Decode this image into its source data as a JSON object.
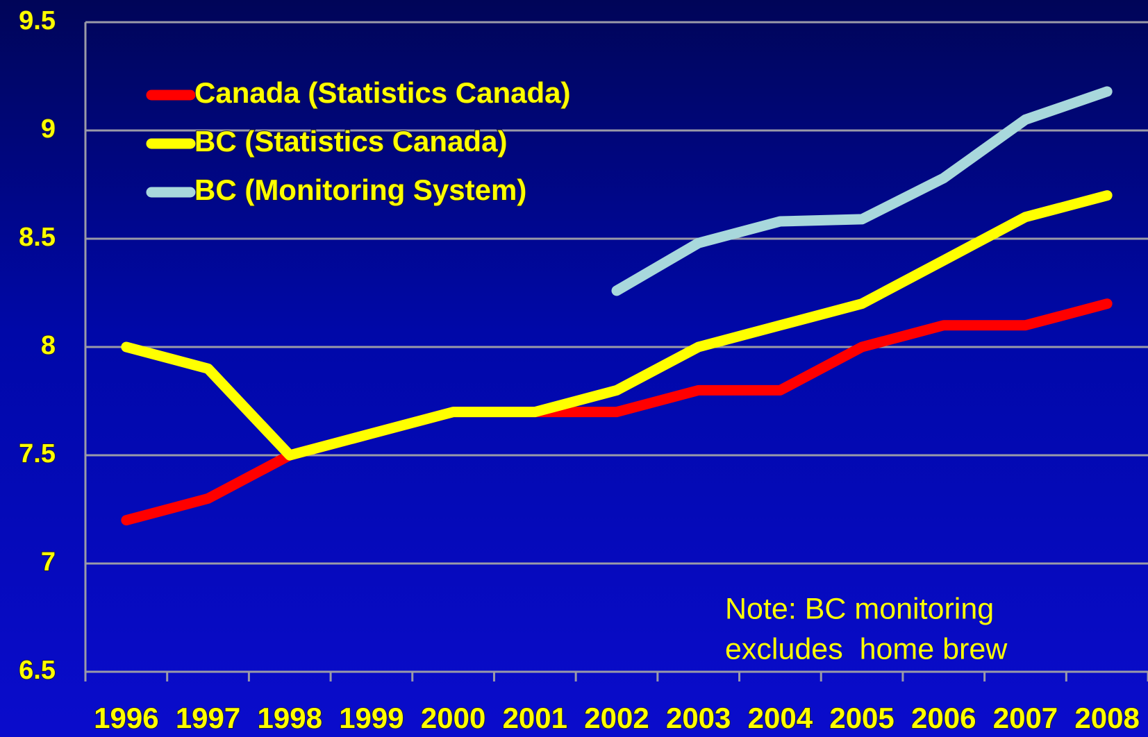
{
  "chart_data": {
    "type": "line",
    "categories": [
      "1996",
      "1997",
      "1998",
      "1999",
      "2000",
      "2001",
      "2002",
      "2003",
      "2004",
      "2005",
      "2006",
      "2007",
      "2008"
    ],
    "series": [
      {
        "name": "Canada (Statistics Canada)",
        "color": "#ff0000",
        "values": [
          7.2,
          7.3,
          7.5,
          7.6,
          7.7,
          7.7,
          7.7,
          7.8,
          7.8,
          8.0,
          8.1,
          8.1,
          8.2
        ]
      },
      {
        "name": "BC (Statistics Canada)",
        "color": "#ffff00",
        "values": [
          8.0,
          7.9,
          7.5,
          7.6,
          7.7,
          7.7,
          7.8,
          8.0,
          8.1,
          8.2,
          8.4,
          8.6,
          8.7
        ]
      },
      {
        "name": "BC (Monitoring System)",
        "color": "#a8d8dc",
        "values": [
          null,
          null,
          null,
          null,
          null,
          null,
          8.26,
          8.48,
          8.58,
          8.59,
          8.78,
          9.05,
          9.18
        ]
      }
    ],
    "ylim": [
      6.5,
      9.5
    ],
    "yticks": [
      6.5,
      7,
      7.5,
      8,
      8.5,
      9,
      9.5
    ],
    "grid": true,
    "legend": "upper left",
    "annotations": [
      "Note: BC monitoring",
      "excludes  home brew"
    ]
  }
}
